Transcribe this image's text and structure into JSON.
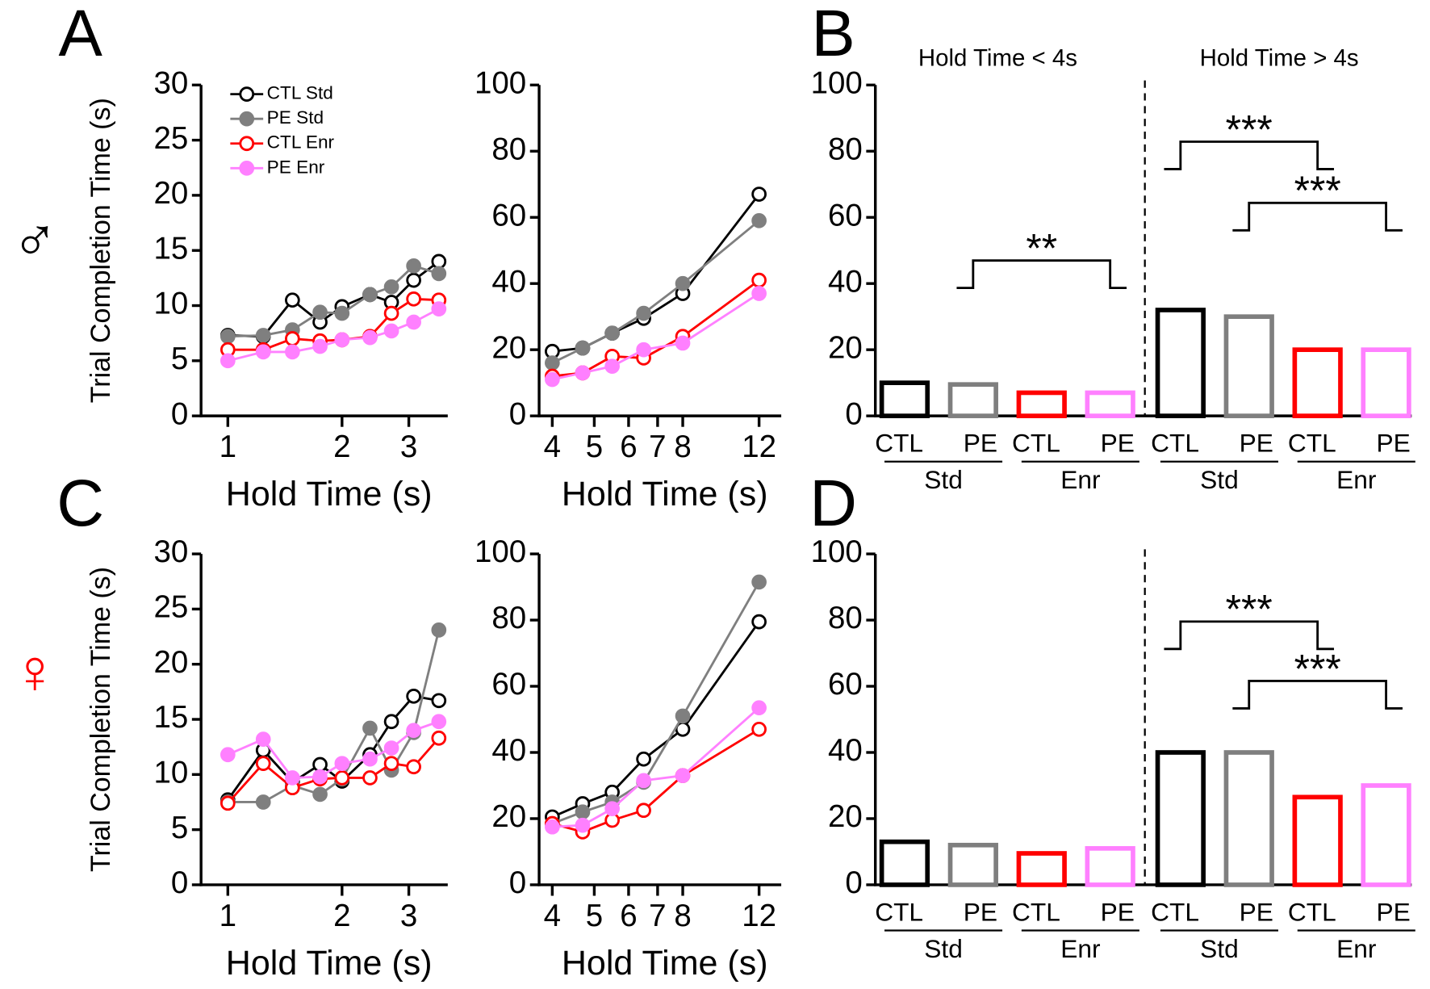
{
  "panel_labels": [
    "A",
    "B",
    "C",
    "D"
  ],
  "sex_labels": [
    "♂",
    "♀"
  ],
  "chart_data": [
    {
      "type": "line",
      "log_x": true,
      "xlabel": "Hold Time (s)",
      "ylabel": "Trial Completion Time (s)",
      "legend": "upper left",
      "x": [
        1,
        1.24,
        1.48,
        1.75,
        2,
        2.37,
        2.7,
        3.09,
        3.6
      ],
      "xlim": [
        0.85,
        3.8
      ],
      "xticks": [
        1,
        2,
        3
      ],
      "ylim": [
        0,
        30
      ],
      "yticks": [
        0,
        5,
        10,
        15,
        20,
        25,
        30
      ],
      "series": [
        {
          "name": "CTL Std",
          "color": "#000000",
          "marker": "open",
          "values": [
            7.3,
            7.2,
            10.5,
            8.5,
            9.9,
            11,
            10.3,
            12.3,
            14.0
          ]
        },
        {
          "name": "PE Std",
          "color": "#7f7f7f",
          "marker": "filled",
          "values": [
            7.2,
            7.3,
            7.8,
            9.4,
            9.3,
            11.0,
            11.7,
            13.6,
            12.9
          ]
        },
        {
          "name": "CTL Enr",
          "color": "#ff0000",
          "marker": "open",
          "values": [
            6.0,
            6.0,
            7.0,
            6.8,
            6.9,
            7.2,
            9.3,
            10.6,
            10.5
          ]
        },
        {
          "name": "PE Enr",
          "color": "#ff80ff",
          "marker": "filled",
          "values": [
            5.0,
            5.8,
            5.8,
            6.3,
            6.9,
            7.1,
            7.7,
            8.5,
            9.7
          ]
        }
      ]
    },
    {
      "type": "line",
      "log_x": true,
      "xlabel": "Hold Time (s)",
      "x": [
        4,
        4.7,
        5.5,
        6.5,
        8,
        12
      ],
      "xlim": [
        3.73,
        13.5
      ],
      "xticks": [
        4,
        5,
        6,
        7,
        8,
        12
      ],
      "ylim": [
        0,
        100
      ],
      "yticks": [
        0,
        20,
        40,
        60,
        80,
        100
      ],
      "series": [
        {
          "color": "#000000",
          "marker": "open",
          "values": [
            19.5,
            20.5,
            25,
            29.5,
            37,
            67
          ]
        },
        {
          "color": "#7f7f7f",
          "marker": "filled",
          "values": [
            16,
            20.5,
            25,
            31,
            40,
            59
          ]
        },
        {
          "color": "#ff0000",
          "marker": "open",
          "values": [
            12,
            13,
            18,
            17.5,
            24,
            41
          ]
        },
        {
          "color": "#ff80ff",
          "marker": "filled",
          "values": [
            11,
            13,
            15,
            20,
            22,
            37
          ]
        }
      ]
    },
    {
      "type": "bar",
      "headers": [
        "Hold Time < 4s",
        "Hold Time > 4s"
      ],
      "categories": [
        "CTL",
        "PE",
        "CTL",
        "PE",
        "CTL",
        "PE",
        "CTL",
        "PE"
      ],
      "groups": [
        "Std",
        "Enr",
        "Std",
        "Enr"
      ],
      "colors": [
        "#000000",
        "#7f7f7f",
        "#ff0000",
        "#ff80ff",
        "#000000",
        "#7f7f7f",
        "#ff0000",
        "#ff80ff"
      ],
      "values": [
        10,
        9.5,
        7,
        7,
        32,
        30,
        20,
        20
      ],
      "ylim": [
        0,
        100
      ],
      "yticks": [
        0,
        20,
        40,
        60,
        80,
        100
      ],
      "annotations": [
        "**",
        "***",
        "***"
      ]
    },
    {
      "type": "line",
      "log_x": true,
      "xlabel": "Hold Time (s)",
      "ylabel": "Trial Completion Time (s)",
      "x": [
        1,
        1.24,
        1.48,
        1.75,
        2,
        2.37,
        2.7,
        3.09,
        3.6
      ],
      "xlim": [
        0.85,
        3.8
      ],
      "xticks": [
        1,
        2,
        3
      ],
      "ylim": [
        0,
        30
      ],
      "yticks": [
        0,
        5,
        10,
        15,
        20,
        25,
        30
      ],
      "series": [
        {
          "color": "#000000",
          "marker": "open",
          "values": [
            7.7,
            12.2,
            9.3,
            10.9,
            9.4,
            11.8,
            14.8,
            17.1,
            16.7
          ]
        },
        {
          "color": "#7f7f7f",
          "marker": "filled",
          "values": [
            7.5,
            7.5,
            9.0,
            8.2,
            9.6,
            14.2,
            10.4,
            13.8,
            23.1
          ]
        },
        {
          "color": "#ff0000",
          "marker": "open",
          "values": [
            7.4,
            11.0,
            8.8,
            9.6,
            9.7,
            9.7,
            11.0,
            10.7,
            13.3
          ]
        },
        {
          "color": "#ff80ff",
          "marker": "filled",
          "values": [
            11.8,
            13.2,
            9.7,
            9.8,
            11.0,
            11.4,
            12.4,
            14.0,
            14.8
          ]
        }
      ]
    },
    {
      "type": "line",
      "log_x": true,
      "xlabel": "Hold Time (s)",
      "x": [
        4,
        4.7,
        5.5,
        6.5,
        8,
        12
      ],
      "xlim": [
        3.73,
        13.5
      ],
      "xticks": [
        4,
        5,
        6,
        7,
        8,
        12
      ],
      "ylim": [
        0,
        100
      ],
      "yticks": [
        0,
        20,
        40,
        60,
        80,
        100
      ],
      "series": [
        {
          "color": "#000000",
          "marker": "open",
          "values": [
            20.5,
            24.5,
            28,
            38,
            47,
            79.5
          ]
        },
        {
          "color": "#7f7f7f",
          "marker": "filled",
          "values": [
            18.5,
            22,
            25,
            31,
            51,
            91.5
          ]
        },
        {
          "color": "#ff0000",
          "marker": "open",
          "values": [
            18.5,
            16,
            19.5,
            22.5,
            33,
            47
          ]
        },
        {
          "color": "#ff80ff",
          "marker": "filled",
          "values": [
            17.5,
            18,
            23,
            31.5,
            33,
            53.5
          ]
        }
      ]
    },
    {
      "type": "bar",
      "categories": [
        "CTL",
        "PE",
        "CTL",
        "PE",
        "CTL",
        "PE",
        "CTL",
        "PE"
      ],
      "groups": [
        "Std",
        "Enr",
        "Std",
        "Enr"
      ],
      "colors": [
        "#000000",
        "#7f7f7f",
        "#ff0000",
        "#ff80ff",
        "#000000",
        "#7f7f7f",
        "#ff0000",
        "#ff80ff"
      ],
      "values": [
        13,
        12,
        9.5,
        11,
        40,
        40,
        26.5,
        30
      ],
      "ylim": [
        0,
        100
      ],
      "yticks": [
        0,
        20,
        40,
        60,
        80,
        100
      ],
      "annotations": [
        "***",
        "***"
      ]
    }
  ]
}
